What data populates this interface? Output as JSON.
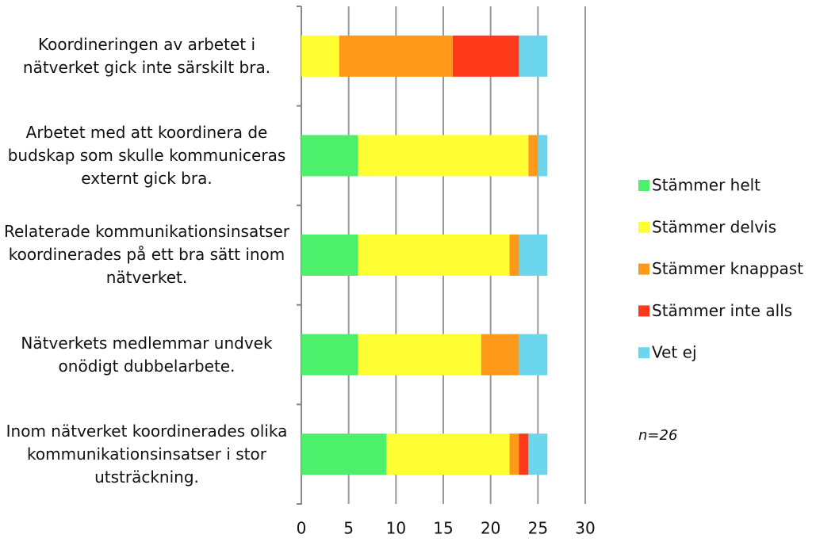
{
  "chart_data": {
    "type": "bar",
    "orientation": "horizontal",
    "stacked": true,
    "categories": [
      "Koordineringen av arbetet i nätverket gick inte särskilt bra.",
      "Arbetet med att koordinera de budskap som skulle kommuniceras externt gick bra.",
      "Relaterade kommunikationsinsatser koordinerades på ett bra sätt inom nätverket.",
      "Nätverkets medlemmar undvek onödigt dubbelarbete.",
      "Inom nätverket koordinerades olika kommunikationsinsatser i stor utsträckning."
    ],
    "series": [
      {
        "name": "Stämmer helt",
        "color": "#4df06b",
        "values": [
          0,
          6,
          6,
          6,
          9
        ]
      },
      {
        "name": "Stämmer delvis",
        "color": "#ffff33",
        "values": [
          4,
          18,
          16,
          13,
          13
        ]
      },
      {
        "name": "Stämmer knappast",
        "color": "#ff991a",
        "values": [
          12,
          1,
          1,
          4,
          1
        ]
      },
      {
        "name": "Stämmer inte alls",
        "color": "#ff3a1a",
        "values": [
          7,
          0,
          0,
          0,
          1
        ]
      },
      {
        "name": "Vet ej",
        "color": "#6cd6ee",
        "values": [
          3,
          1,
          3,
          3,
          2
        ]
      }
    ],
    "xlim": [
      0,
      30
    ],
    "xticks": [
      0,
      5,
      10,
      15,
      20,
      25,
      30
    ],
    "grid": true,
    "legend": "right",
    "annotation": "n=26"
  }
}
